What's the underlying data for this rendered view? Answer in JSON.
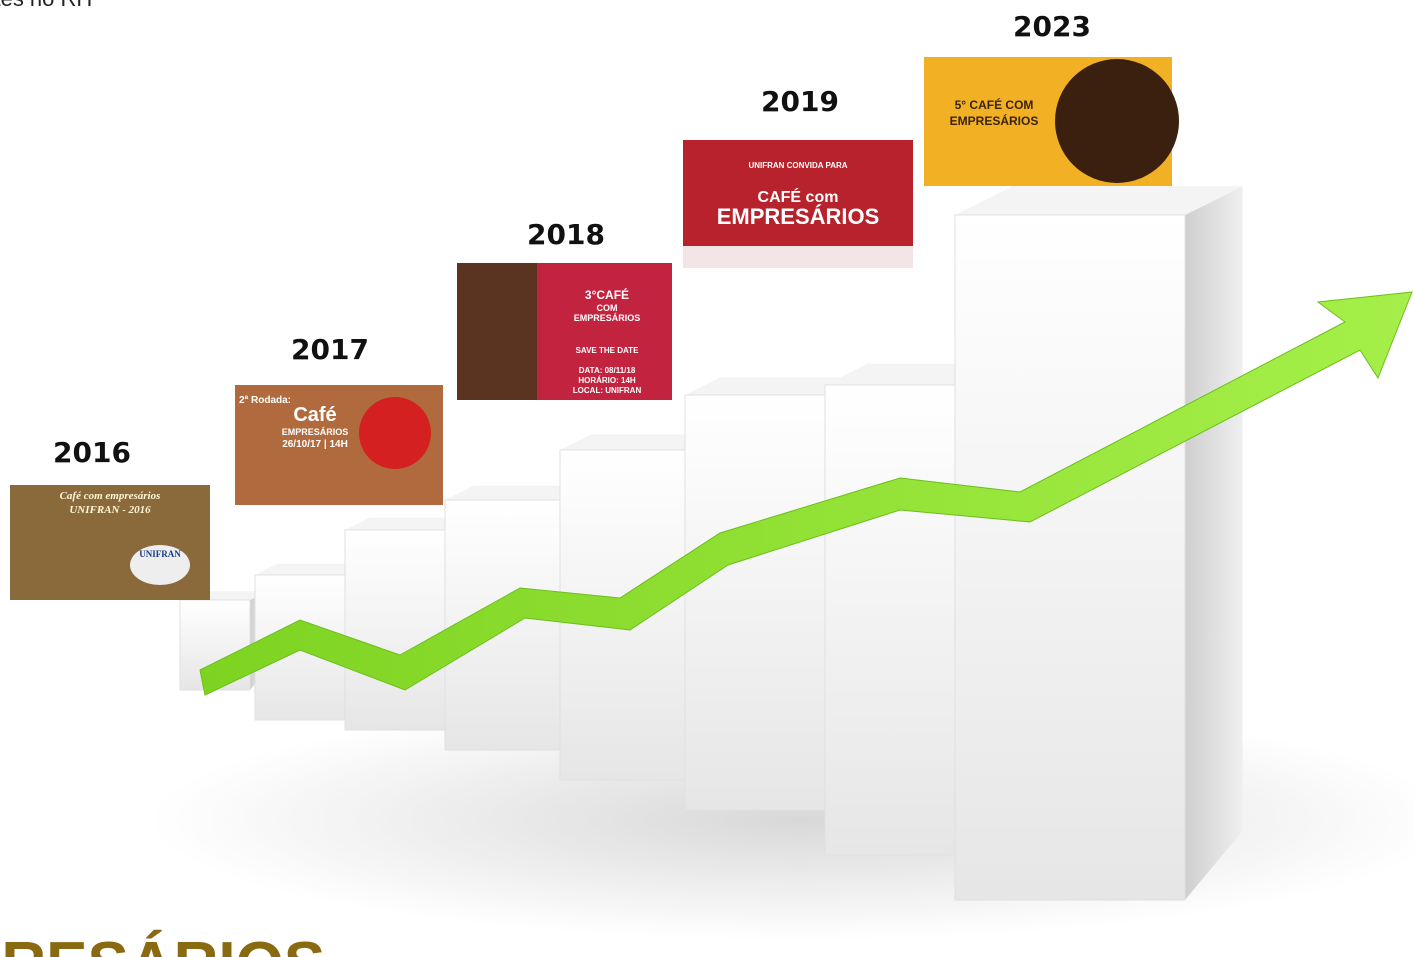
{
  "header_text": "antes no RH",
  "footer_text": "PRESÁRIOS",
  "timeline": [
    {
      "year": "2016",
      "poster": [
        "Café com empresários",
        "UNIFRAN - 2016",
        "UNIFRAN"
      ]
    },
    {
      "year": "2017",
      "poster": [
        "2ª Rodada:",
        "Café",
        "EMPRESÁRIOS",
        "26/10/17 | 14H"
      ]
    },
    {
      "year": "2018",
      "poster": [
        "3°CAFÉ",
        "COM",
        "EMPRESÁRIOS",
        "SAVE THE DATE",
        "DATA: 08/11/18",
        "HORÁRIO: 14H",
        "LOCAL: UNIFRAN"
      ]
    },
    {
      "year": "2019",
      "poster": [
        "UNIFRAN CONVIDA PARA",
        "CAFÉ com",
        "EMPRESÁRIOS"
      ]
    },
    {
      "year": "2023",
      "poster": [
        "5° CAFÉ COM",
        "EMPRESÁRIOS"
      ]
    }
  ]
}
